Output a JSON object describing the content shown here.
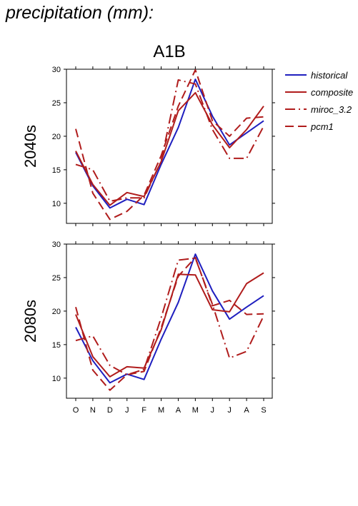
{
  "page": {
    "title": "precipitation (mm):"
  },
  "panel_title": "A1B",
  "chart_data": {
    "type": "line",
    "categories": [
      "O",
      "N",
      "D",
      "J",
      "F",
      "M",
      "A",
      "M",
      "J",
      "J",
      "A",
      "S"
    ],
    "ylim": [
      7,
      30
    ],
    "yticks": [
      10,
      15,
      20,
      25,
      30
    ],
    "legend": {
      "placement": "top-right",
      "entries": [
        "historical",
        "composite",
        "miroc_3.2",
        "pcm1"
      ]
    },
    "styles": {
      "historical": {
        "color": "#1f1fbf",
        "dash": "solid"
      },
      "composite": {
        "color": "#b01c1c",
        "dash": "solid"
      },
      "miroc_3.2": {
        "color": "#b01c1c",
        "dash": "dashdot"
      },
      "pcm1": {
        "color": "#b01c1c",
        "dash": "dashed"
      }
    },
    "panels": [
      {
        "row_label": "2040s",
        "series": [
          {
            "name": "historical",
            "values": [
              17.6,
              12.6,
              9.3,
              10.6,
              9.8,
              15.8,
              21.3,
              28.5,
              23.0,
              18.7,
              20.5,
              22.3
            ]
          },
          {
            "name": "composite",
            "values": [
              17.8,
              12.8,
              9.7,
              11.6,
              11.0,
              16.2,
              23.8,
              26.5,
              21.7,
              18.3,
              21.0,
              24.5
            ]
          },
          {
            "name": "miroc_3.2",
            "values": [
              15.8,
              15.0,
              10.3,
              10.8,
              10.8,
              16.3,
              28.4,
              27.8,
              21.0,
              16.7,
              16.7,
              21.5
            ]
          },
          {
            "name": "pcm1",
            "values": [
              21.1,
              11.5,
              7.6,
              8.8,
              11.2,
              17.1,
              24.5,
              29.9,
              22.3,
              20.0,
              22.7,
              22.9
            ]
          }
        ]
      },
      {
        "row_label": "2080s",
        "series": [
          {
            "name": "historical",
            "values": [
              17.6,
              12.6,
              9.3,
              10.6,
              9.8,
              15.8,
              21.3,
              28.5,
              23.0,
              18.8,
              20.6,
              22.3
            ]
          },
          {
            "name": "composite",
            "values": [
              19.5,
              13.2,
              10.2,
              11.7,
              11.5,
              17.2,
              25.5,
              25.4,
              20.2,
              19.9,
              24.1,
              25.7
            ]
          },
          {
            "name": "miroc_3.2",
            "values": [
              15.6,
              16.3,
              11.9,
              10.5,
              11.3,
              19.0,
              27.6,
              27.9,
              21.0,
              13.0,
              14.0,
              19.3
            ]
          },
          {
            "name": "pcm1",
            "values": [
              20.6,
              11.2,
              8.2,
              10.5,
              11.0,
              17.5,
              25.2,
              28.0,
              20.8,
              21.6,
              19.5,
              19.6
            ]
          }
        ]
      }
    ]
  }
}
